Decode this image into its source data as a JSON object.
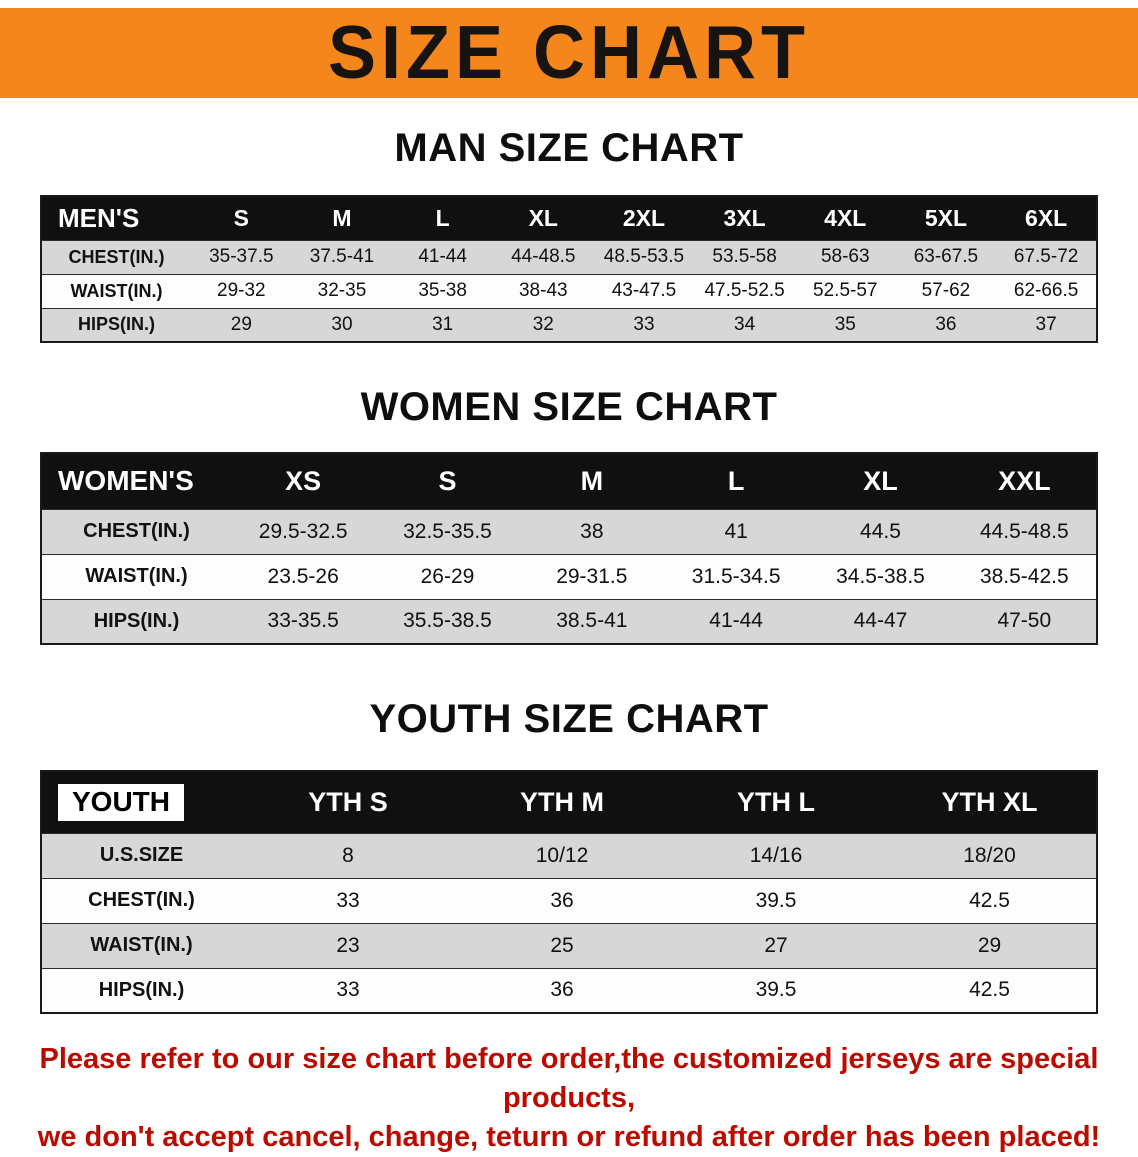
{
  "colors": {
    "banner": "#f4861c",
    "warning": "#bb0b00"
  },
  "banner": {
    "title": "SIZE CHART"
  },
  "men": {
    "heading": "MAN SIZE CHART",
    "table": {
      "corner": "MEN'S",
      "columns": [
        "S",
        "M",
        "L",
        "XL",
        "2XL",
        "3XL",
        "4XL",
        "5XL",
        "6XL"
      ],
      "rows": [
        {
          "label": "CHEST(IN.)",
          "values": [
            "35-37.5",
            "37.5-41",
            "41-44",
            "44-48.5",
            "48.5-53.5",
            "53.5-58",
            "58-63",
            "63-67.5",
            "67.5-72"
          ]
        },
        {
          "label": "WAIST(IN.)",
          "values": [
            "29-32",
            "32-35",
            "35-38",
            "38-43",
            "43-47.5",
            "47.5-52.5",
            "52.5-57",
            "57-62",
            "62-66.5"
          ]
        },
        {
          "label": "HIPS(IN.)",
          "values": [
            "29",
            "30",
            "31",
            "32",
            "33",
            "34",
            "35",
            "36",
            "37"
          ]
        }
      ]
    }
  },
  "women": {
    "heading": "WOMEN SIZE CHART",
    "table": {
      "corner": "WOMEN'S",
      "columns": [
        "XS",
        "S",
        "M",
        "L",
        "XL",
        "XXL"
      ],
      "rows": [
        {
          "label": "CHEST(IN.)",
          "values": [
            "29.5-32.5",
            "32.5-35.5",
            "38",
            "41",
            "44.5",
            "44.5-48.5"
          ]
        },
        {
          "label": "WAIST(IN.)",
          "values": [
            "23.5-26",
            "26-29",
            "29-31.5",
            "31.5-34.5",
            "34.5-38.5",
            "38.5-42.5"
          ]
        },
        {
          "label": "HIPS(IN.)",
          "values": [
            "33-35.5",
            "35.5-38.5",
            "38.5-41",
            "41-44",
            "44-47",
            "47-50"
          ]
        }
      ]
    }
  },
  "youth": {
    "heading": "YOUTH SIZE CHART",
    "table": {
      "corner": "YOUTH",
      "columns": [
        "YTH S",
        "YTH M",
        "YTH L",
        "YTH XL"
      ],
      "rows": [
        {
          "label": "U.S.SIZE",
          "values": [
            "8",
            "10/12",
            "14/16",
            "18/20"
          ]
        },
        {
          "label": "CHEST(IN.)",
          "values": [
            "33",
            "36",
            "39.5",
            "42.5"
          ]
        },
        {
          "label": "WAIST(IN.)",
          "values": [
            "23",
            "25",
            "27",
            "29"
          ]
        },
        {
          "label": "HIPS(IN.)",
          "values": [
            "33",
            "36",
            "39.5",
            "42.5"
          ]
        }
      ]
    }
  },
  "footer": {
    "line1": "Please refer to our size chart before order,the customized jerseys are special products,",
    "line2": "we don't accept cancel, change, teturn or refund after order has been placed!"
  }
}
